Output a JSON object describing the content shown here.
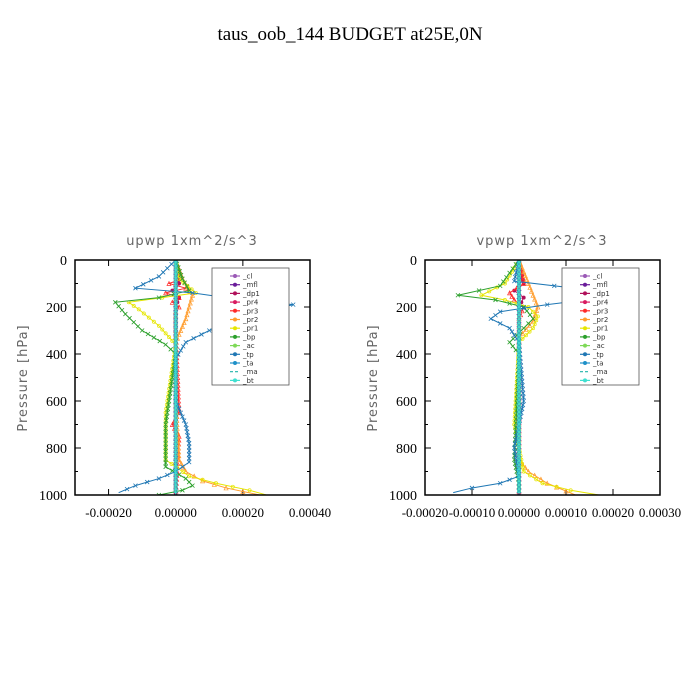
{
  "figure_title": "taus_oob_144  BUDGET at25E,0N",
  "chart_data": [
    {
      "type": "line",
      "title": "upwp   1xm^2/s^3",
      "ylabel": "Pressure [hPa]",
      "xlim": [
        -0.0003,
        0.0004
      ],
      "ylim": [
        1000,
        0
      ],
      "xticks": [
        -0.0002,
        0.0,
        0.0002,
        0.0004
      ],
      "xtick_labels": [
        "-0.00020",
        "0.00000",
        "0.00020",
        "0.00040"
      ],
      "yticks": [
        0,
        200,
        400,
        600,
        800,
        1000
      ],
      "ytick_labels": [
        "0",
        "200",
        "400",
        "600",
        "800",
        "1000"
      ],
      "legend_position": "upper-right",
      "series": [
        {
          "name": "_cl",
          "color": "#9b59b6",
          "marker": "circle",
          "x": [
            0,
            0
          ],
          "y": [
            0,
            1000
          ]
        },
        {
          "name": "_mfl",
          "color": "#6a1b9a",
          "marker": "circle",
          "x": [
            0,
            0
          ],
          "y": [
            0,
            1000
          ]
        },
        {
          "name": "_dp1",
          "color": "#b0105a",
          "marker": "circle",
          "x": [
            0,
            1e-05,
            -1e-05,
            1e-05,
            0,
            0,
            0,
            0
          ],
          "y": [
            0,
            100,
            130,
            160,
            200,
            400,
            700,
            1000
          ]
        },
        {
          "name": "_pr4",
          "color": "#d81b60",
          "marker": "tri",
          "x": [
            0,
            0,
            0
          ],
          "y": [
            0,
            500,
            1000
          ]
        },
        {
          "name": "_pr3",
          "color": "#ff2a2a",
          "marker": "tri",
          "x": [
            0,
            2e-05,
            -2e-05,
            3e-05,
            -3e-05,
            1e-05,
            -1e-05,
            1e-05,
            0,
            0,
            1e-05,
            -1e-05,
            1e-05,
            0
          ],
          "y": [
            0,
            80,
            100,
            120,
            140,
            160,
            180,
            200,
            220,
            300,
            650,
            700,
            750,
            1000
          ]
        },
        {
          "name": "_pr2",
          "color": "#ff9d2e",
          "marker": "tri",
          "x": [
            0,
            2e-05,
            5e-05,
            3e-05,
            0,
            0,
            1e-05,
            3e-05,
            8e-05,
            0.00015,
            0.00025
          ],
          "y": [
            0,
            80,
            150,
            250,
            350,
            600,
            850,
            900,
            940,
            970,
            1000
          ]
        },
        {
          "name": "_pr1",
          "color": "#e6e600",
          "marker": "circle",
          "x": [
            0,
            1e-05,
            6e-05,
            -4e-05,
            -0.00014,
            -0.00011,
            -5e-05,
            0,
            -3e-05,
            -3e-05,
            4e-05,
            0.00012,
            0.00022,
            0.00027
          ],
          "y": [
            0,
            80,
            140,
            160,
            180,
            210,
            280,
            360,
            650,
            850,
            920,
            950,
            980,
            1000
          ]
        },
        {
          "name": "_bp",
          "color": "#2ca02c",
          "marker": "cross",
          "x": [
            0,
            2e-05,
            4e-05,
            -5e-05,
            -0.00018,
            -0.00015,
            -0.0001,
            -3e-05,
            0,
            -3e-05,
            -3e-05,
            3e-05,
            5e-05,
            2e-05,
            -5e-05,
            0
          ],
          "y": [
            0,
            80,
            130,
            160,
            180,
            230,
            300,
            360,
            400,
            700,
            880,
            930,
            960,
            980,
            1000,
            1000
          ]
        },
        {
          "name": "_ac",
          "color": "#7ed957",
          "marker": "circle",
          "x": [
            0,
            0,
            0
          ],
          "y": [
            0,
            500,
            1000
          ]
        },
        {
          "name": "_tp",
          "color": "#1f77b4",
          "marker": "cross",
          "x": [
            0,
            -5e-05,
            -0.00012,
            5e-05,
            0.00015,
            0.00028,
            0.00035,
            0.00032,
            0.00028,
            0.0002,
            0.0001,
            3e-05,
            0,
            0,
            3e-05,
            4e-05,
            4e-05,
            0,
            -5e-05,
            -0.00012,
            -0.00017
          ],
          "y": [
            0,
            70,
            120,
            140,
            160,
            180,
            190,
            200,
            230,
            260,
            300,
            350,
            420,
            600,
            700,
            780,
            860,
            900,
            930,
            960,
            990
          ]
        },
        {
          "name": "_ta",
          "color": "#1e90c8",
          "marker": "cross",
          "x": [
            0,
            0,
            0
          ],
          "y": [
            0,
            500,
            1000
          ]
        },
        {
          "name": "_ma",
          "color": "#20b2aa",
          "marker": "none",
          "x": [
            0,
            0,
            0
          ],
          "y": [
            0,
            500,
            1000
          ]
        },
        {
          "name": "_bt",
          "color": "#40e0d0",
          "marker": "circle",
          "x": [
            0,
            0,
            0
          ],
          "y": [
            0,
            500,
            1000
          ]
        }
      ]
    },
    {
      "type": "line",
      "title": "vpwp   1xm^2/s^3",
      "ylabel": "Pressure [hPa]",
      "xlim": [
        -0.0002,
        0.0003
      ],
      "ylim": [
        1000,
        0
      ],
      "xticks": [
        -0.0002,
        -0.0001,
        0.0,
        0.0001,
        0.0002,
        0.0003
      ],
      "xtick_labels": [
        "-0.00020",
        "-0.00010",
        "0.00000",
        "0.00010",
        "0.00020",
        "0.00030"
      ],
      "yticks": [
        0,
        200,
        400,
        600,
        800,
        1000
      ],
      "ytick_labels": [
        "0",
        "200",
        "400",
        "600",
        "800",
        "1000"
      ],
      "legend_position": "upper-right",
      "series": [
        {
          "name": "_cl",
          "color": "#9b59b6",
          "marker": "circle",
          "x": [
            0,
            0
          ],
          "y": [
            0,
            1000
          ]
        },
        {
          "name": "_mfl",
          "color": "#6a1b9a",
          "marker": "circle",
          "x": [
            0,
            0
          ],
          "y": [
            0,
            1000
          ]
        },
        {
          "name": "_dp1",
          "color": "#b0105a",
          "marker": "circle",
          "x": [
            0,
            1e-05,
            -1e-05,
            1e-05,
            0,
            0
          ],
          "y": [
            0,
            100,
            130,
            160,
            200,
            1000
          ]
        },
        {
          "name": "_pr4",
          "color": "#d81b60",
          "marker": "tri",
          "x": [
            0,
            0,
            0
          ],
          "y": [
            0,
            500,
            1000
          ]
        },
        {
          "name": "_pr3",
          "color": "#ff2a2a",
          "marker": "tri",
          "x": [
            0,
            1e-05,
            -2e-05,
            -1e-05,
            1e-05,
            0,
            0
          ],
          "y": [
            0,
            100,
            140,
            170,
            200,
            250,
            1000
          ]
        },
        {
          "name": "_pr2",
          "color": "#ff9d2e",
          "marker": "tri",
          "x": [
            0,
            2e-05,
            4e-05,
            3e-05,
            0,
            0,
            2e-05,
            6e-05,
            0.00012
          ],
          "y": [
            0,
            100,
            200,
            260,
            330,
            850,
            900,
            950,
            1000
          ]
        },
        {
          "name": "_pr1",
          "color": "#e6e600",
          "marker": "circle",
          "x": [
            0,
            -3e-05,
            -8e-05,
            -3e-05,
            2e-05,
            4e-05,
            3e-05,
            0,
            -1e-05,
            1e-05,
            5e-05,
            0.00011,
            0.00017
          ],
          "y": [
            0,
            100,
            150,
            170,
            200,
            240,
            290,
            350,
            700,
            900,
            950,
            980,
            1000
          ]
        },
        {
          "name": "_bp",
          "color": "#2ca02c",
          "marker": "cross",
          "x": [
            0,
            -4e-05,
            -0.00013,
            -5e-05,
            1e-05,
            3e-05,
            1e-05,
            -2e-05,
            0,
            -1e-05,
            0,
            0
          ],
          "y": [
            0,
            110,
            150,
            170,
            200,
            250,
            290,
            350,
            400,
            850,
            950,
            1000
          ]
        },
        {
          "name": "_ac",
          "color": "#7ed957",
          "marker": "circle",
          "x": [
            0,
            0,
            0
          ],
          "y": [
            0,
            500,
            1000
          ]
        },
        {
          "name": "_tp",
          "color": "#1f77b4",
          "marker": "cross",
          "x": [
            0,
            -1e-05,
            0.00016,
            0.00024,
            0.00014,
            6e-05,
            -4e-05,
            -6e-05,
            -2e-05,
            0,
            1e-05,
            -1e-05,
            0,
            -4e-05,
            -0.0001,
            -0.00014
          ],
          "y": [
            0,
            90,
            130,
            150,
            170,
            190,
            220,
            250,
            290,
            350,
            600,
            800,
            920,
            950,
            970,
            990
          ]
        },
        {
          "name": "_ta",
          "color": "#1e90c8",
          "marker": "cross",
          "x": [
            0,
            0,
            0
          ],
          "y": [
            0,
            500,
            1000
          ]
        },
        {
          "name": "_ma",
          "color": "#20b2aa",
          "marker": "none",
          "x": [
            0,
            0,
            0
          ],
          "y": [
            0,
            500,
            1000
          ]
        },
        {
          "name": "_bt",
          "color": "#40e0d0",
          "marker": "circle",
          "x": [
            0,
            0,
            0
          ],
          "y": [
            0,
            500,
            1000
          ]
        }
      ]
    }
  ]
}
